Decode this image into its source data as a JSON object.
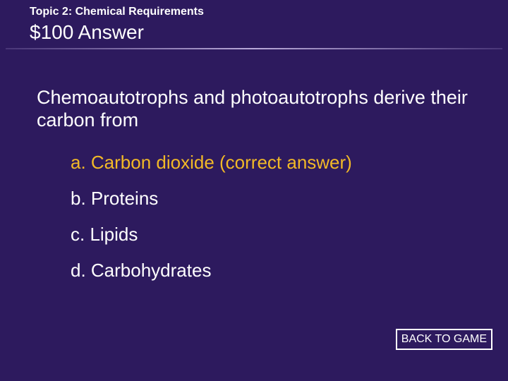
{
  "header": {
    "topic": "Topic 2: Chemical Requirements",
    "title": "$100 Answer"
  },
  "question": "Chemoautotrophs and photoautotrophs derive their carbon from",
  "answers": {
    "a": "a. Carbon dioxide (correct answer)",
    "b": "b. Proteins",
    "c": "c. Lipids",
    "d": "d. Carbohydrates"
  },
  "correct_key": "a",
  "button": {
    "back_label": "BACK TO GAME"
  },
  "colors": {
    "slide_bg": "#2d1a5e",
    "text": "#ffffff",
    "correct": "#f2b927",
    "page_bg": "#000000"
  }
}
